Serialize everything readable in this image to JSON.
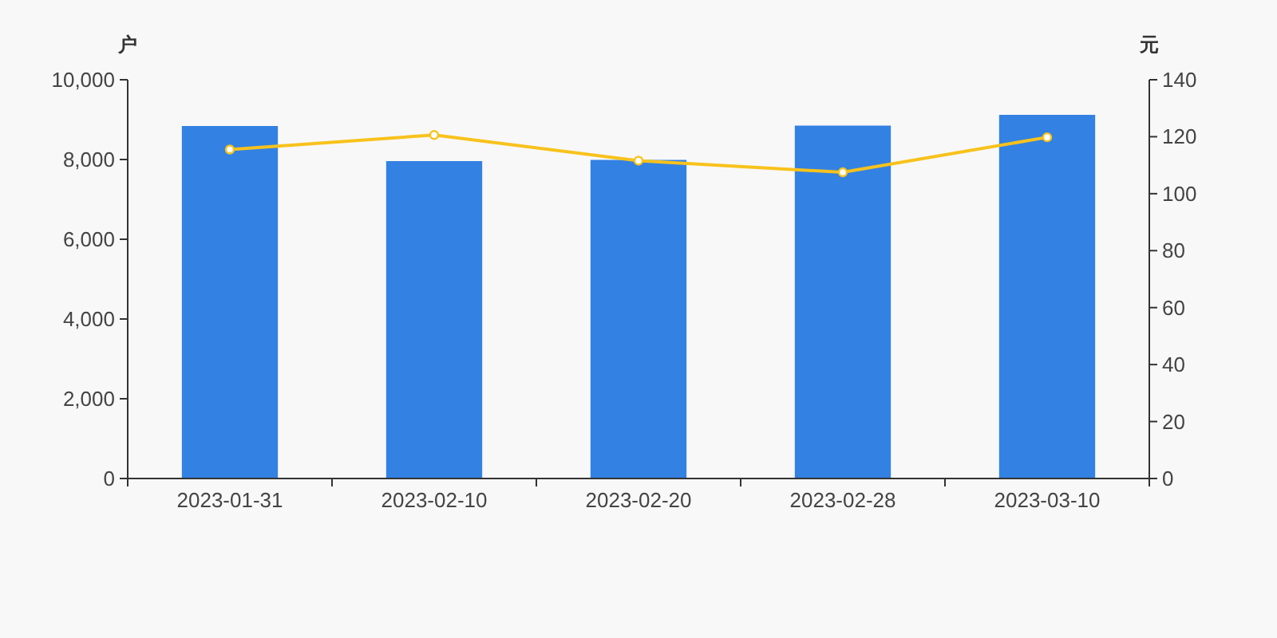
{
  "chart_data": {
    "type": "bar",
    "ylabel": "户",
    "y2label": "元",
    "categories": [
      "2023-01-31",
      "2023-02-10",
      "2023-02-20",
      "2023-02-28",
      "2023-03-10"
    ],
    "series": [
      {
        "color": "#3381e3",
        "values": [
          8840,
          7960,
          7990,
          8850,
          9120
        ]
      },
      {
        "type": "line",
        "axis": "y2",
        "color": "#f8c21c",
        "values": [
          115.5,
          120.6,
          111.6,
          107.5,
          119.8
        ]
      }
    ],
    "ylim": [
      0,
      10000
    ],
    "yticks": [
      0,
      {
        "value": 2000,
        "label": "2,000"
      },
      {
        "value": 4000,
        "label": "4,000"
      },
      {
        "value": 6000,
        "label": "6,000"
      },
      {
        "value": 8000,
        "label": "8,000"
      },
      {
        "value": 10000,
        "label": "10,000"
      }
    ],
    "y2lim": [
      0,
      140
    ],
    "y2ticks": [
      0,
      20,
      40,
      60,
      80,
      100,
      120,
      140
    ],
    "marker": "circle",
    "grid": false
  }
}
